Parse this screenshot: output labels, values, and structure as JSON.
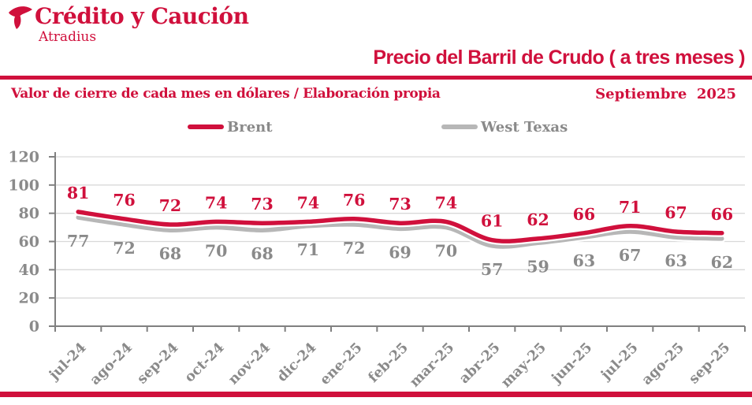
{
  "header": {
    "logo_text": "Crédito y Caución",
    "logo_subtext": "Atradius",
    "title": "Precio del Barril de Crudo ( a tres meses )",
    "subtitle_left": "Valor de cierre de cada mes en dólares / Elaboración propia",
    "subtitle_right": "Septiembre  2025"
  },
  "colors": {
    "red": "#d0103c",
    "gray_line": "#b7b7b7",
    "gray_text": "#8a8a8a",
    "grid": "#d9d9d9",
    "axis": "#808080",
    "background": "#ffffff"
  },
  "legend": {
    "items": [
      {
        "label": "Brent",
        "color": "#d0103c"
      },
      {
        "label": "West Texas",
        "color": "#b7b7b7"
      }
    ]
  },
  "chart_data": {
    "type": "line",
    "title": "Precio del Barril de Crudo ( a tres meses )",
    "subtitle": "Valor de cierre de cada mes en dólares / Elaboración propia",
    "period_label": "Septiembre 2025",
    "categories": [
      "jul-24",
      "ago-24",
      "sep-24",
      "oct-24",
      "nov-24",
      "dic-24",
      "ene-25",
      "feb-25",
      "mar-25",
      "abr-25",
      "may-25",
      "jun-25",
      "jul-25",
      "ago-25",
      "sep-25"
    ],
    "series": [
      {
        "name": "Brent",
        "color": "#d0103c",
        "values": [
          81,
          76,
          72,
          74,
          73,
          74,
          76,
          73,
          74,
          61,
          62,
          66,
          71,
          67,
          66
        ]
      },
      {
        "name": "West Texas",
        "color": "#b7b7b7",
        "values": [
          77,
          72,
          68,
          70,
          68,
          71,
          72,
          69,
          70,
          57,
          59,
          63,
          67,
          63,
          62
        ]
      }
    ],
    "xlabel": "",
    "ylabel": "",
    "ylim": [
      0,
      120
    ],
    "yticks": [
      0,
      20,
      40,
      60,
      80,
      100,
      120
    ],
    "grid": true,
    "data_labels": true,
    "legend_position": "top",
    "smooth": true
  }
}
